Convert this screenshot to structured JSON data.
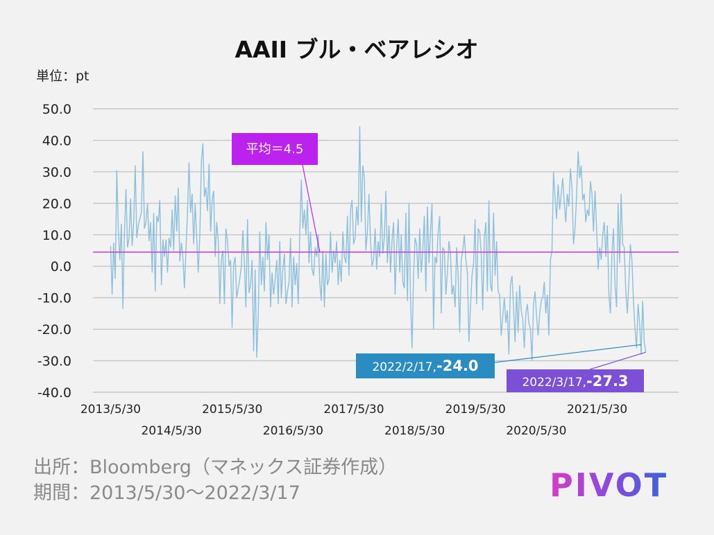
{
  "colors": {
    "background": "#f2f2f2",
    "series": "#8bbfdc",
    "average": "#cc33ee",
    "callout_avg": "#bb22ee",
    "callout_first": "#2a8cc0",
    "callout_second": "#7b4fd6",
    "grid": "#c8c8c8"
  },
  "footer": {
    "source": "出所：Bloomberg（マネックス証券作成）",
    "period": "期間：2013/5/30～2022/3/17"
  },
  "logo": {
    "text": "PIVOT"
  },
  "chart_data": {
    "type": "line",
    "title": "AAII ブル・ベアレシオ",
    "unit_label": "単位：pt",
    "ylim": [
      -40,
      50
    ],
    "yticks": [
      "50.0",
      "40.0",
      "30.0",
      "20.0",
      "10.0",
      "0.0",
      "-10.0",
      "-20.0",
      "-30.0",
      "-40.0"
    ],
    "ytick_values": [
      50,
      40,
      30,
      20,
      10,
      0,
      -10,
      -20,
      -30,
      -40
    ],
    "x_start": "2013/5/30",
    "x_end": "2022/3/17",
    "xticks": [
      "2013/5/30",
      "2014/5/30",
      "2015/5/30",
      "2016/5/30",
      "2017/5/30",
      "2018/5/30",
      "2019/5/30",
      "2020/5/30",
      "2021/5/30"
    ],
    "xtick_years": [
      2013.41,
      2014.41,
      2015.41,
      2016.41,
      2017.41,
      2018.41,
      2019.41,
      2020.41,
      2021.41
    ],
    "grid": true,
    "average": {
      "value": 4.5,
      "label": "平均＝4.5"
    },
    "annotations": [
      {
        "date": "2022/2/17",
        "year": 2022.13,
        "value": -24.0,
        "label": "2022/2/17,",
        "value_label": "-24.0"
      },
      {
        "date": "2022/3/17",
        "year": 2022.21,
        "value": -27.3,
        "label": "2022/3/17,",
        "value_label": "-27.3"
      }
    ],
    "series": [
      {
        "name": "AAII ブル・ベアレシオ",
        "x_start_year": 2013.41,
        "x_end_year": 2022.21,
        "values": [
          6.5,
          -9,
          7.5,
          -4,
          30.5,
          12,
          2,
          13.5,
          -13.5,
          11,
          24.5,
          6,
          9,
          21.5,
          6.5,
          14,
          32,
          9,
          13,
          15,
          17,
          36.5,
          12,
          14,
          20,
          8,
          14,
          -2,
          17,
          -8,
          16,
          14,
          21,
          -6,
          8.5,
          3,
          8.5,
          -2,
          9,
          6,
          18,
          5,
          22.5,
          11,
          25,
          1.5,
          7.5,
          3,
          -7,
          5,
          17,
          33,
          17,
          23,
          7,
          20,
          9,
          -2,
          10,
          33,
          39,
          22,
          25,
          17.5,
          32.5,
          11,
          21,
          24,
          3,
          14,
          8,
          -12,
          2,
          5,
          -12,
          12,
          8,
          0,
          2,
          -19.5,
          0.5,
          3,
          -10,
          -7,
          -4,
          0,
          11.5,
          1,
          -13,
          15,
          -8.5,
          -6,
          2,
          -27,
          -1,
          -29,
          -16,
          11,
          -6,
          3,
          -8,
          14,
          2,
          10,
          -13,
          -2,
          -9,
          -4,
          2,
          -12,
          8,
          -10,
          -1,
          4,
          -12,
          -8,
          -5,
          9,
          -13,
          3,
          -6,
          1,
          -12,
          10,
          27.5,
          12,
          18,
          10,
          21,
          1,
          11,
          -1,
          -3,
          6,
          3,
          10,
          -5,
          -11,
          5,
          -13,
          4,
          -6,
          -4,
          11,
          -2,
          5,
          1,
          8,
          -6,
          2,
          -5,
          11,
          3,
          1,
          16,
          -3,
          18,
          21,
          7,
          9,
          19,
          13,
          44.5,
          14,
          32,
          28,
          5,
          11,
          23,
          8,
          0,
          2,
          12,
          -1,
          8,
          3,
          20,
          4,
          9,
          24,
          1,
          13,
          -2,
          8,
          14,
          -9,
          6,
          15,
          -2,
          10,
          -5,
          -7,
          17,
          -11,
          20,
          -10,
          -26,
          -3,
          9,
          7,
          -4,
          12,
          -2,
          5,
          16,
          -8,
          19,
          1,
          11,
          20,
          -20,
          3,
          1,
          11,
          16,
          -15,
          6,
          5,
          -9,
          -2,
          8,
          4,
          -9,
          -6,
          -13,
          6,
          -3,
          -21,
          2,
          5,
          10,
          2,
          -2,
          -24,
          -13,
          -3,
          1,
          15,
          -12,
          12,
          11,
          4,
          -14,
          9,
          14,
          -8,
          21,
          -6,
          -8,
          17,
          -3,
          8,
          -8,
          -9,
          -22,
          -16,
          -10,
          -18,
          -14,
          -28,
          -6,
          -3,
          -13,
          -24,
          -8,
          -21,
          -6,
          -14,
          -17,
          -26,
          -15,
          -12,
          -18,
          -20,
          -30,
          -12,
          -8,
          -16,
          -22,
          -15,
          -11,
          -10,
          -5,
          -15,
          -9,
          -22,
          2,
          5,
          30,
          22,
          15,
          26,
          18,
          23,
          28,
          20,
          14,
          23,
          19,
          31,
          25,
          7,
          12,
          22,
          36.5,
          28,
          32,
          21,
          23,
          14,
          18,
          16,
          27,
          23,
          11,
          24,
          12,
          -1,
          6,
          2,
          10,
          14,
          3,
          13,
          -9,
          -15,
          4,
          12,
          -6,
          -13,
          20,
          1,
          23,
          7,
          6,
          -8,
          -15,
          -5,
          7,
          2,
          -11,
          -20,
          -26,
          -12,
          -18,
          -28,
          -11,
          -24,
          -27.3
        ]
      }
    ]
  }
}
